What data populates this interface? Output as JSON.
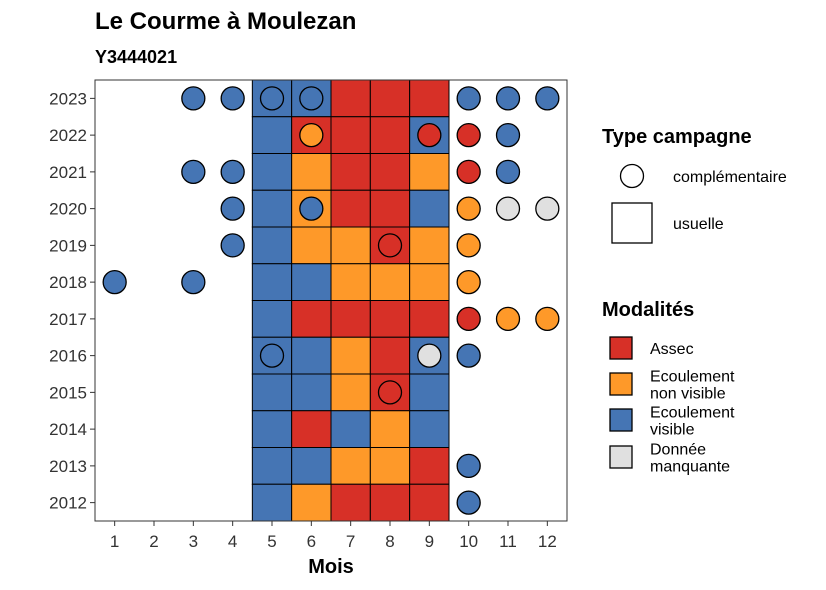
{
  "colors": {
    "Assec": "#D73027",
    "Ecoulement non visible": "#FE9929",
    "Ecoulement visible": "#4575B4",
    "Donnée manquante": "#E0E0E0"
  },
  "chart_data": {
    "type": "heatmap",
    "title": "Le Courme à Moulezan",
    "subtitle": "Y3444021",
    "xlabel": "Mois",
    "ylabel": "",
    "x_ticks": [
      1,
      2,
      3,
      4,
      5,
      6,
      7,
      8,
      9,
      10,
      11,
      12
    ],
    "y_ticks": [
      2023,
      2022,
      2021,
      2020,
      2019,
      2018,
      2017,
      2016,
      2015,
      2014,
      2013,
      2012
    ],
    "xlim": [
      0.5,
      12.5
    ],
    "ylim": [
      2011.5,
      2023.5
    ],
    "grid": false,
    "legend_position": "right",
    "observations": [
      {
        "year": 2023,
        "month": 3,
        "type": "complémentaire",
        "value": "Ecoulement visible"
      },
      {
        "year": 2023,
        "month": 4,
        "type": "complémentaire",
        "value": "Ecoulement visible"
      },
      {
        "year": 2023,
        "month": 5,
        "type": "usuelle",
        "value": "Ecoulement visible"
      },
      {
        "year": 2023,
        "month": 5,
        "type": "complémentaire",
        "value": "Ecoulement visible"
      },
      {
        "year": 2023,
        "month": 6,
        "type": "usuelle",
        "value": "Ecoulement visible"
      },
      {
        "year": 2023,
        "month": 6,
        "type": "complémentaire",
        "value": "Ecoulement visible"
      },
      {
        "year": 2023,
        "month": 7,
        "type": "usuelle",
        "value": "Assec"
      },
      {
        "year": 2023,
        "month": 8,
        "type": "usuelle",
        "value": "Assec"
      },
      {
        "year": 2023,
        "month": 9,
        "type": "usuelle",
        "value": "Assec"
      },
      {
        "year": 2023,
        "month": 10,
        "type": "complémentaire",
        "value": "Ecoulement visible"
      },
      {
        "year": 2023,
        "month": 11,
        "type": "complémentaire",
        "value": "Ecoulement visible"
      },
      {
        "year": 2023,
        "month": 12,
        "type": "complémentaire",
        "value": "Ecoulement visible"
      },
      {
        "year": 2022,
        "month": 5,
        "type": "usuelle",
        "value": "Ecoulement visible"
      },
      {
        "year": 2022,
        "month": 6,
        "type": "usuelle",
        "value": "Assec"
      },
      {
        "year": 2022,
        "month": 6,
        "type": "complémentaire",
        "value": "Ecoulement non visible"
      },
      {
        "year": 2022,
        "month": 7,
        "type": "usuelle",
        "value": "Assec"
      },
      {
        "year": 2022,
        "month": 8,
        "type": "usuelle",
        "value": "Assec"
      },
      {
        "year": 2022,
        "month": 9,
        "type": "usuelle",
        "value": "Ecoulement visible"
      },
      {
        "year": 2022,
        "month": 9,
        "type": "complémentaire",
        "value": "Assec"
      },
      {
        "year": 2022,
        "month": 10,
        "type": "complémentaire",
        "value": "Assec"
      },
      {
        "year": 2022,
        "month": 11,
        "type": "complémentaire",
        "value": "Ecoulement visible"
      },
      {
        "year": 2021,
        "month": 3,
        "type": "complémentaire",
        "value": "Ecoulement visible"
      },
      {
        "year": 2021,
        "month": 4,
        "type": "complémentaire",
        "value": "Ecoulement visible"
      },
      {
        "year": 2021,
        "month": 5,
        "type": "usuelle",
        "value": "Ecoulement visible"
      },
      {
        "year": 2021,
        "month": 6,
        "type": "usuelle",
        "value": "Ecoulement non visible"
      },
      {
        "year": 2021,
        "month": 7,
        "type": "usuelle",
        "value": "Assec"
      },
      {
        "year": 2021,
        "month": 8,
        "type": "usuelle",
        "value": "Assec"
      },
      {
        "year": 2021,
        "month": 9,
        "type": "usuelle",
        "value": "Ecoulement non visible"
      },
      {
        "year": 2021,
        "month": 10,
        "type": "complémentaire",
        "value": "Assec"
      },
      {
        "year": 2021,
        "month": 11,
        "type": "complémentaire",
        "value": "Ecoulement visible"
      },
      {
        "year": 2020,
        "month": 4,
        "type": "complémentaire",
        "value": "Ecoulement visible"
      },
      {
        "year": 2020,
        "month": 5,
        "type": "usuelle",
        "value": "Ecoulement visible"
      },
      {
        "year": 2020,
        "month": 6,
        "type": "usuelle",
        "value": "Ecoulement non visible"
      },
      {
        "year": 2020,
        "month": 6,
        "type": "complémentaire",
        "value": "Ecoulement visible"
      },
      {
        "year": 2020,
        "month": 7,
        "type": "usuelle",
        "value": "Assec"
      },
      {
        "year": 2020,
        "month": 8,
        "type": "usuelle",
        "value": "Assec"
      },
      {
        "year": 2020,
        "month": 9,
        "type": "usuelle",
        "value": "Ecoulement visible"
      },
      {
        "year": 2020,
        "month": 10,
        "type": "complémentaire",
        "value": "Ecoulement non visible"
      },
      {
        "year": 2020,
        "month": 11,
        "type": "complémentaire",
        "value": "Donnée manquante"
      },
      {
        "year": 2020,
        "month": 12,
        "type": "complémentaire",
        "value": "Donnée manquante"
      },
      {
        "year": 2019,
        "month": 4,
        "type": "complémentaire",
        "value": "Ecoulement visible"
      },
      {
        "year": 2019,
        "month": 5,
        "type": "usuelle",
        "value": "Ecoulement visible"
      },
      {
        "year": 2019,
        "month": 6,
        "type": "usuelle",
        "value": "Ecoulement non visible"
      },
      {
        "year": 2019,
        "month": 7,
        "type": "usuelle",
        "value": "Ecoulement non visible"
      },
      {
        "year": 2019,
        "month": 8,
        "type": "usuelle",
        "value": "Assec"
      },
      {
        "year": 2019,
        "month": 8,
        "type": "complémentaire",
        "value": "Assec"
      },
      {
        "year": 2019,
        "month": 9,
        "type": "usuelle",
        "value": "Ecoulement non visible"
      },
      {
        "year": 2019,
        "month": 10,
        "type": "complémentaire",
        "value": "Ecoulement non visible"
      },
      {
        "year": 2018,
        "month": 1,
        "type": "complémentaire",
        "value": "Ecoulement visible"
      },
      {
        "year": 2018,
        "month": 3,
        "type": "complémentaire",
        "value": "Ecoulement visible"
      },
      {
        "year": 2018,
        "month": 5,
        "type": "usuelle",
        "value": "Ecoulement visible"
      },
      {
        "year": 2018,
        "month": 6,
        "type": "usuelle",
        "value": "Ecoulement visible"
      },
      {
        "year": 2018,
        "month": 7,
        "type": "usuelle",
        "value": "Ecoulement non visible"
      },
      {
        "year": 2018,
        "month": 8,
        "type": "usuelle",
        "value": "Ecoulement non visible"
      },
      {
        "year": 2018,
        "month": 9,
        "type": "usuelle",
        "value": "Ecoulement non visible"
      },
      {
        "year": 2018,
        "month": 10,
        "type": "complémentaire",
        "value": "Ecoulement non visible"
      },
      {
        "year": 2017,
        "month": 5,
        "type": "usuelle",
        "value": "Ecoulement visible"
      },
      {
        "year": 2017,
        "month": 6,
        "type": "usuelle",
        "value": "Assec"
      },
      {
        "year": 2017,
        "month": 7,
        "type": "usuelle",
        "value": "Assec"
      },
      {
        "year": 2017,
        "month": 8,
        "type": "usuelle",
        "value": "Assec"
      },
      {
        "year": 2017,
        "month": 9,
        "type": "usuelle",
        "value": "Assec"
      },
      {
        "year": 2017,
        "month": 10,
        "type": "complémentaire",
        "value": "Assec"
      },
      {
        "year": 2017,
        "month": 11,
        "type": "complémentaire",
        "value": "Ecoulement non visible"
      },
      {
        "year": 2017,
        "month": 12,
        "type": "complémentaire",
        "value": "Ecoulement non visible"
      },
      {
        "year": 2016,
        "month": 5,
        "type": "usuelle",
        "value": "Ecoulement visible"
      },
      {
        "year": 2016,
        "month": 5,
        "type": "complémentaire",
        "value": "Ecoulement visible"
      },
      {
        "year": 2016,
        "month": 6,
        "type": "usuelle",
        "value": "Ecoulement visible"
      },
      {
        "year": 2016,
        "month": 7,
        "type": "usuelle",
        "value": "Ecoulement non visible"
      },
      {
        "year": 2016,
        "month": 8,
        "type": "usuelle",
        "value": "Assec"
      },
      {
        "year": 2016,
        "month": 9,
        "type": "usuelle",
        "value": "Ecoulement visible"
      },
      {
        "year": 2016,
        "month": 9,
        "type": "complémentaire",
        "value": "Donnée manquante"
      },
      {
        "year": 2016,
        "month": 10,
        "type": "complémentaire",
        "value": "Ecoulement visible"
      },
      {
        "year": 2015,
        "month": 5,
        "type": "usuelle",
        "value": "Ecoulement visible"
      },
      {
        "year": 2015,
        "month": 6,
        "type": "usuelle",
        "value": "Ecoulement visible"
      },
      {
        "year": 2015,
        "month": 7,
        "type": "usuelle",
        "value": "Ecoulement non visible"
      },
      {
        "year": 2015,
        "month": 8,
        "type": "usuelle",
        "value": "Assec"
      },
      {
        "year": 2015,
        "month": 8,
        "type": "complémentaire",
        "value": "Assec"
      },
      {
        "year": 2015,
        "month": 9,
        "type": "usuelle",
        "value": "Ecoulement visible"
      },
      {
        "year": 2014,
        "month": 5,
        "type": "usuelle",
        "value": "Ecoulement visible"
      },
      {
        "year": 2014,
        "month": 6,
        "type": "usuelle",
        "value": "Assec"
      },
      {
        "year": 2014,
        "month": 7,
        "type": "usuelle",
        "value": "Ecoulement visible"
      },
      {
        "year": 2014,
        "month": 8,
        "type": "usuelle",
        "value": "Ecoulement non visible"
      },
      {
        "year": 2014,
        "month": 9,
        "type": "usuelle",
        "value": "Ecoulement visible"
      },
      {
        "year": 2013,
        "month": 5,
        "type": "usuelle",
        "value": "Ecoulement visible"
      },
      {
        "year": 2013,
        "month": 6,
        "type": "usuelle",
        "value": "Ecoulement visible"
      },
      {
        "year": 2013,
        "month": 7,
        "type": "usuelle",
        "value": "Ecoulement non visible"
      },
      {
        "year": 2013,
        "month": 8,
        "type": "usuelle",
        "value": "Ecoulement non visible"
      },
      {
        "year": 2013,
        "month": 9,
        "type": "usuelle",
        "value": "Assec"
      },
      {
        "year": 2013,
        "month": 10,
        "type": "complémentaire",
        "value": "Ecoulement visible"
      },
      {
        "year": 2012,
        "month": 5,
        "type": "usuelle",
        "value": "Ecoulement visible"
      },
      {
        "year": 2012,
        "month": 6,
        "type": "usuelle",
        "value": "Ecoulement non visible"
      },
      {
        "year": 2012,
        "month": 7,
        "type": "usuelle",
        "value": "Assec"
      },
      {
        "year": 2012,
        "month": 8,
        "type": "usuelle",
        "value": "Assec"
      },
      {
        "year": 2012,
        "month": 9,
        "type": "usuelle",
        "value": "Assec"
      },
      {
        "year": 2012,
        "month": 10,
        "type": "complémentaire",
        "value": "Ecoulement visible"
      }
    ]
  },
  "legend": {
    "type_title": "Type campagne",
    "type_items": [
      {
        "key": "complémentaire",
        "label": "complémentaire",
        "shape": "circle"
      },
      {
        "key": "usuelle",
        "label": "usuelle",
        "shape": "square"
      }
    ],
    "mod_title": "Modalités",
    "mod_items": [
      {
        "key": "Assec",
        "lines": [
          "Assec"
        ]
      },
      {
        "key": "Ecoulement non visible",
        "lines": [
          "Ecoulement",
          "non visible"
        ]
      },
      {
        "key": "Ecoulement visible",
        "lines": [
          "Ecoulement",
          "visible"
        ]
      },
      {
        "key": "Donnée manquante",
        "lines": [
          "Donnée",
          "manquante"
        ]
      }
    ]
  }
}
